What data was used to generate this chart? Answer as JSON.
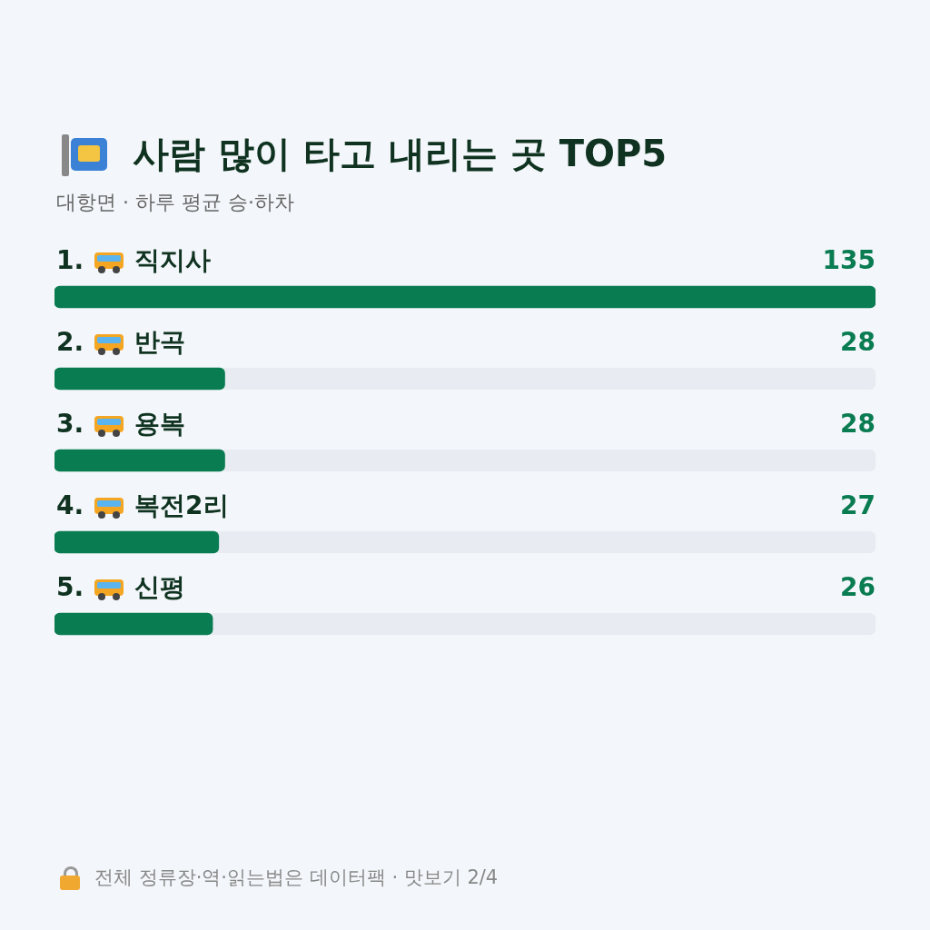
{
  "chart_data": {
    "type": "bar",
    "orientation": "horizontal",
    "title": "사람 많이 타고 내리는 곳 TOP5",
    "subtitle": "대항면 · 하루 평균 승·하차",
    "categories": [
      "1. 직지사",
      "2. 반곡",
      "3. 용복",
      "4. 복전2리",
      "5. 신평"
    ],
    "values": [
      135,
      28,
      28,
      27,
      26
    ],
    "color": "#0a7c52",
    "xlim": [
      0,
      135
    ],
    "data_labels": true,
    "tick_labels": false,
    "legend": false,
    "annotations": [
      "전체 정류장·역·읽는법은 데이터팩 · 맛보기 2/4"
    ]
  }
}
